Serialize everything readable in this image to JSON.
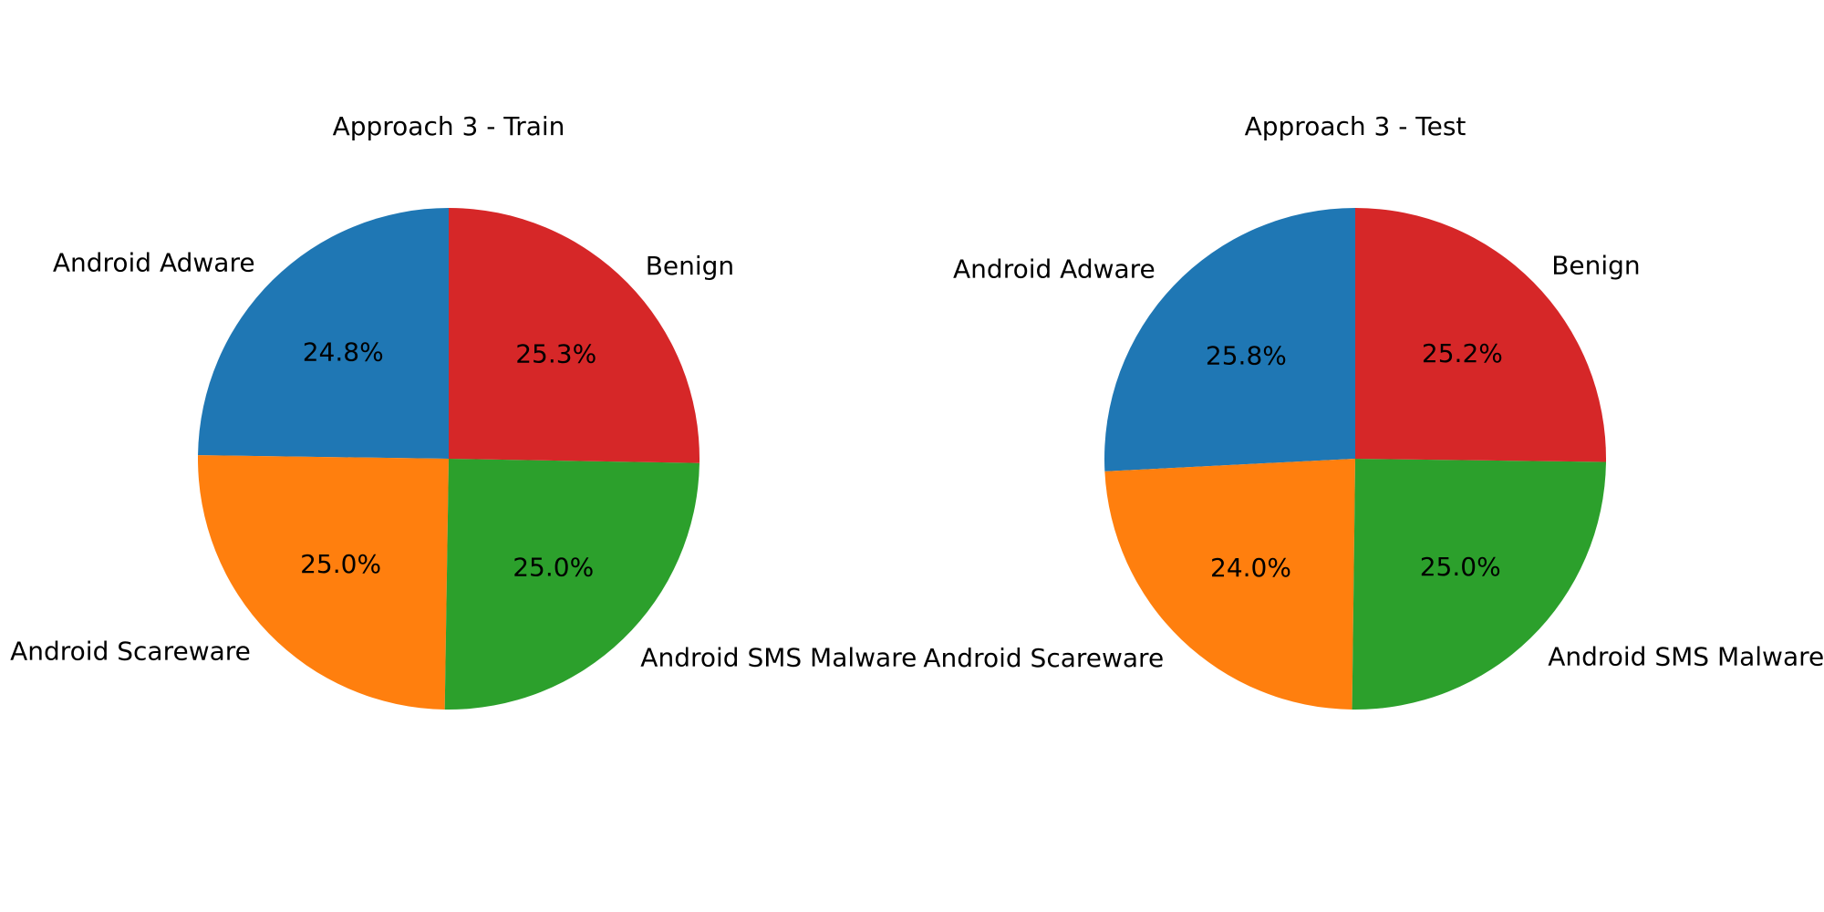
{
  "chart_data": [
    {
      "type": "pie",
      "title": "Approach 3 - Train",
      "start_angle_deg": 90,
      "direction": "counterclockwise",
      "slices": [
        {
          "label": "Android Adware",
          "value": 24.8,
          "pct_label": "24.8%",
          "color": "#1f77b4"
        },
        {
          "label": "Android Scareware",
          "value": 25.0,
          "pct_label": "25.0%",
          "color": "#ff7f0e"
        },
        {
          "label": "Android SMS Malware",
          "value": 25.0,
          "pct_label": "25.0%",
          "color": "#2ca02c"
        },
        {
          "label": "Benign",
          "value": 25.3,
          "pct_label": "25.3%",
          "color": "#d62728"
        }
      ]
    },
    {
      "type": "pie",
      "title": "Approach 3 - Test",
      "start_angle_deg": 90,
      "direction": "counterclockwise",
      "slices": [
        {
          "label": "Android Adware",
          "value": 25.8,
          "pct_label": "25.8%",
          "color": "#1f77b4"
        },
        {
          "label": "Android Scareware",
          "value": 24.0,
          "pct_label": "24.0%",
          "color": "#ff7f0e"
        },
        {
          "label": "Android SMS Malware",
          "value": 25.0,
          "pct_label": "25.0%",
          "color": "#2ca02c"
        },
        {
          "label": "Benign",
          "value": 25.2,
          "pct_label": "25.2%",
          "color": "#d62728"
        }
      ]
    }
  ]
}
